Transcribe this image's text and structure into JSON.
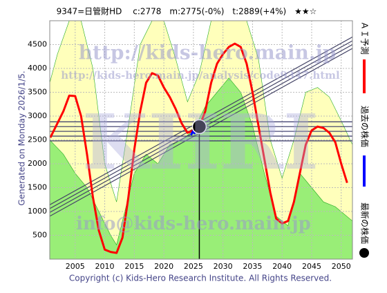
{
  "chart_data": {
    "type": "line",
    "title": "9347=日管財HD　 c:2778　m:2775(-0%)　t:2889(+4%)　★★☆",
    "side_note": "Generated on Monday 2026/1/5.",
    "footer": "Copyright (c) Kids-Hero Research Institute. All Rights Reserved.",
    "watermarks": [
      "http://kids-hero.main.jp",
      "http://kids-hero.main.jp/analysis/code9347.html",
      "KHRI",
      "info@kids-hero.main.jp"
    ],
    "xlim": [
      2000.7,
      2051.9
    ],
    "ylim": [
      0,
      5000
    ],
    "xticks": [
      2005,
      2010,
      2015,
      2020,
      2025,
      2030,
      2035,
      2040,
      2045,
      2050
    ],
    "yticks": [
      500,
      1000,
      1500,
      2000,
      2500,
      3000,
      3500,
      4000,
      4500
    ],
    "grid": true,
    "series": [
      {
        "name": "ＡＩ予測",
        "color": "#ff0000",
        "x": [
          2000.8,
          2003,
          2004,
          2005,
          2006,
          2007,
          2008,
          2009,
          2010,
          2011,
          2012,
          2013,
          2014,
          2015,
          2016,
          2017,
          2018,
          2019,
          2020,
          2021,
          2022,
          2023,
          2024,
          2025,
          2026,
          2027,
          2028,
          2029,
          2030,
          2031,
          2032,
          2033,
          2034,
          2035,
          2036,
          2037,
          2038,
          2039,
          2040,
          2041,
          2042,
          2043,
          2044,
          2045,
          2046,
          2047,
          2048,
          2049,
          2050,
          2051
        ],
        "values": [
          2550,
          3100,
          3430,
          3420,
          3000,
          2200,
          1300,
          600,
          200,
          150,
          130,
          450,
          1300,
          2300,
          3100,
          3700,
          3900,
          3850,
          3600,
          3400,
          3150,
          2850,
          2650,
          2700,
          2778,
          3100,
          3700,
          4100,
          4300,
          4450,
          4520,
          4450,
          4100,
          3500,
          2800,
          2100,
          1400,
          850,
          750,
          800,
          1200,
          1800,
          2400,
          2700,
          2780,
          2750,
          2650,
          2450,
          2000,
          1600
        ]
      },
      {
        "name": "過去の株価",
        "color": "#0000ff",
        "x": [
          2024.6,
          2024.9,
          2025.2,
          2025.5,
          2025.8
        ],
        "values": [
          2600,
          2680,
          2640,
          2720,
          2760
        ]
      },
      {
        "name": "最新の株価",
        "color": "#000000",
        "x": [
          2026
        ],
        "values": [
          2778
        ]
      }
    ],
    "yellow_area": {
      "color": "#ffffbb",
      "x": [
        2000.7,
        2002,
        2004,
        2006,
        2008,
        2010,
        2012,
        2014,
        2016,
        2018,
        2020,
        2022,
        2024,
        2026,
        2028,
        2030,
        2032,
        2034,
        2036,
        2038,
        2040,
        2042,
        2044,
        2046,
        2048,
        2050,
        2051.9
      ],
      "values": [
        3700,
        4300,
        5000,
        5000,
        4000,
        2000,
        1200,
        2800,
        4500,
        5000,
        5000,
        4200,
        3300,
        3900,
        5000,
        5000,
        5000,
        5000,
        4200,
        2500,
        1700,
        2500,
        3500,
        3600,
        3400,
        2900,
        2400
      ]
    },
    "green_area": {
      "color": "#99ee77",
      "x": [
        2000.7,
        2003,
        2005,
        2007,
        2009,
        2011,
        2012,
        2013,
        2015,
        2017,
        2019,
        2021,
        2023,
        2025,
        2027,
        2029,
        2031,
        2033,
        2035,
        2037,
        2039,
        2041,
        2043,
        2045,
        2047,
        2049,
        2051.9
      ],
      "values": [
        2500,
        2200,
        1800,
        1500,
        1000,
        500,
        300,
        800,
        1800,
        2200,
        2000,
        2400,
        2500,
        2700,
        3200,
        3500,
        3800,
        3500,
        2800,
        1800,
        900,
        700,
        1800,
        1500,
        1200,
        1100,
        800
      ]
    },
    "trend_lines": {
      "color": "#444466",
      "x": [
        2000.7,
        2051.9
      ],
      "starts": [
        900,
        980,
        1060,
        1140
      ],
      "ends": [
        4420,
        4500,
        4580,
        4660
      ]
    },
    "h_lines": {
      "color": "#333366",
      "values": [
        2480,
        2580,
        2680,
        2780,
        2880
      ]
    }
  }
}
